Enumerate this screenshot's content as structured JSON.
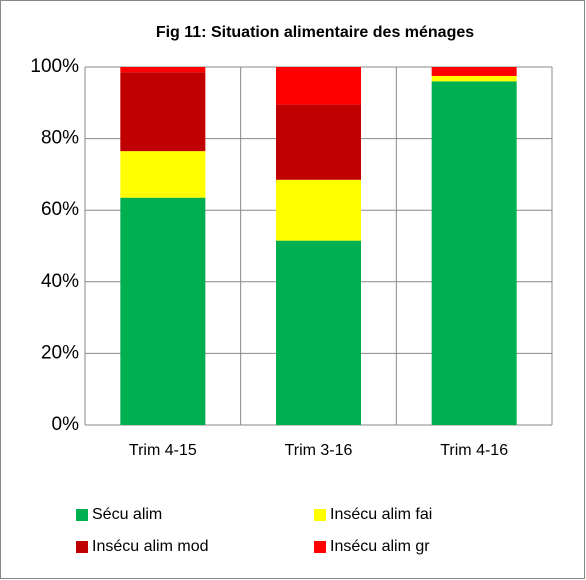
{
  "chart_data": {
    "type": "stacked_bar",
    "title": "Fig 11: Situation alimentaire des ménages",
    "categories": [
      "Trim 4-15",
      "Trim 3-16",
      "Trim 4-16"
    ],
    "series": [
      {
        "name": "Sécu alim",
        "color": "#00b050",
        "values": [
          63.5,
          51.5,
          96
        ]
      },
      {
        "name": "Insécu alim fai",
        "color": "#ffff00",
        "values": [
          13,
          17,
          1.5
        ]
      },
      {
        "name": "Insécu alim mod",
        "color": "#c00000",
        "values": [
          22,
          21,
          0
        ]
      },
      {
        "name": "Insécu alim gr",
        "color": "#ff0000",
        "values": [
          1.5,
          10.5,
          2.5
        ]
      }
    ],
    "ylim": [
      0,
      100
    ],
    "yticks": [
      {
        "value": 0,
        "label": "0%"
      },
      {
        "value": 20,
        "label": "20%"
      },
      {
        "value": 40,
        "label": "40%"
      },
      {
        "value": 60,
        "label": "60%"
      },
      {
        "value": 80,
        "label": "80%"
      },
      {
        "value": 100,
        "label": "100%"
      }
    ],
    "grid": true,
    "legend": "bottom"
  }
}
